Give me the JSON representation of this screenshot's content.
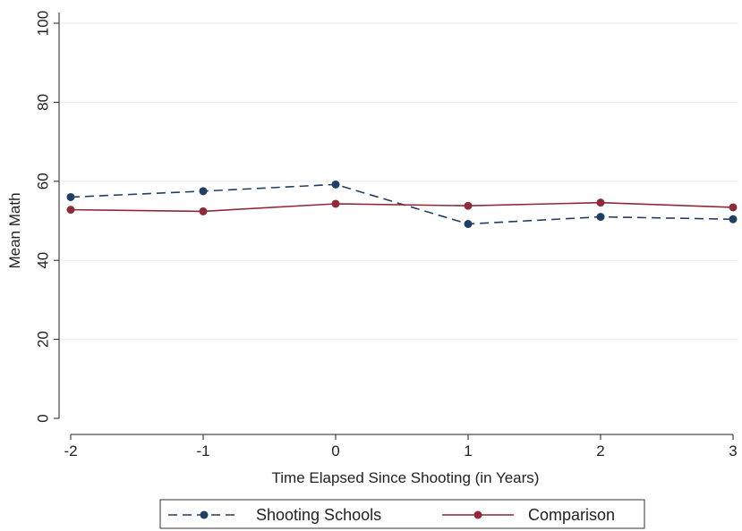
{
  "chart_data": {
    "type": "line",
    "x": [
      -2,
      -1,
      0,
      1,
      2,
      3
    ],
    "series": [
      {
        "name": "Shooting Schools",
        "values": [
          56,
          57.5,
          59.2,
          49.2,
          51,
          50.4
        ],
        "color": "#1f3f66",
        "dash": "dashed",
        "marker": "circle"
      },
      {
        "name": "Comparison",
        "values": [
          52.8,
          52.4,
          54.3,
          53.8,
          54.6,
          53.4
        ],
        "color": "#8e2b3a",
        "dash": "solid",
        "marker": "circle"
      }
    ],
    "xlabel": "Time Elapsed Since Shooting (in Years)",
    "ylabel": "Mean Math",
    "xlim": [
      -2,
      3
    ],
    "ylim": [
      0,
      100
    ],
    "xticks": [
      "-2",
      "-1",
      "0",
      "1",
      "2",
      "3"
    ],
    "yticks": [
      "0",
      "20",
      "40",
      "60",
      "80",
      "100"
    ],
    "grid": "horizontal",
    "legend_position": "bottom"
  }
}
